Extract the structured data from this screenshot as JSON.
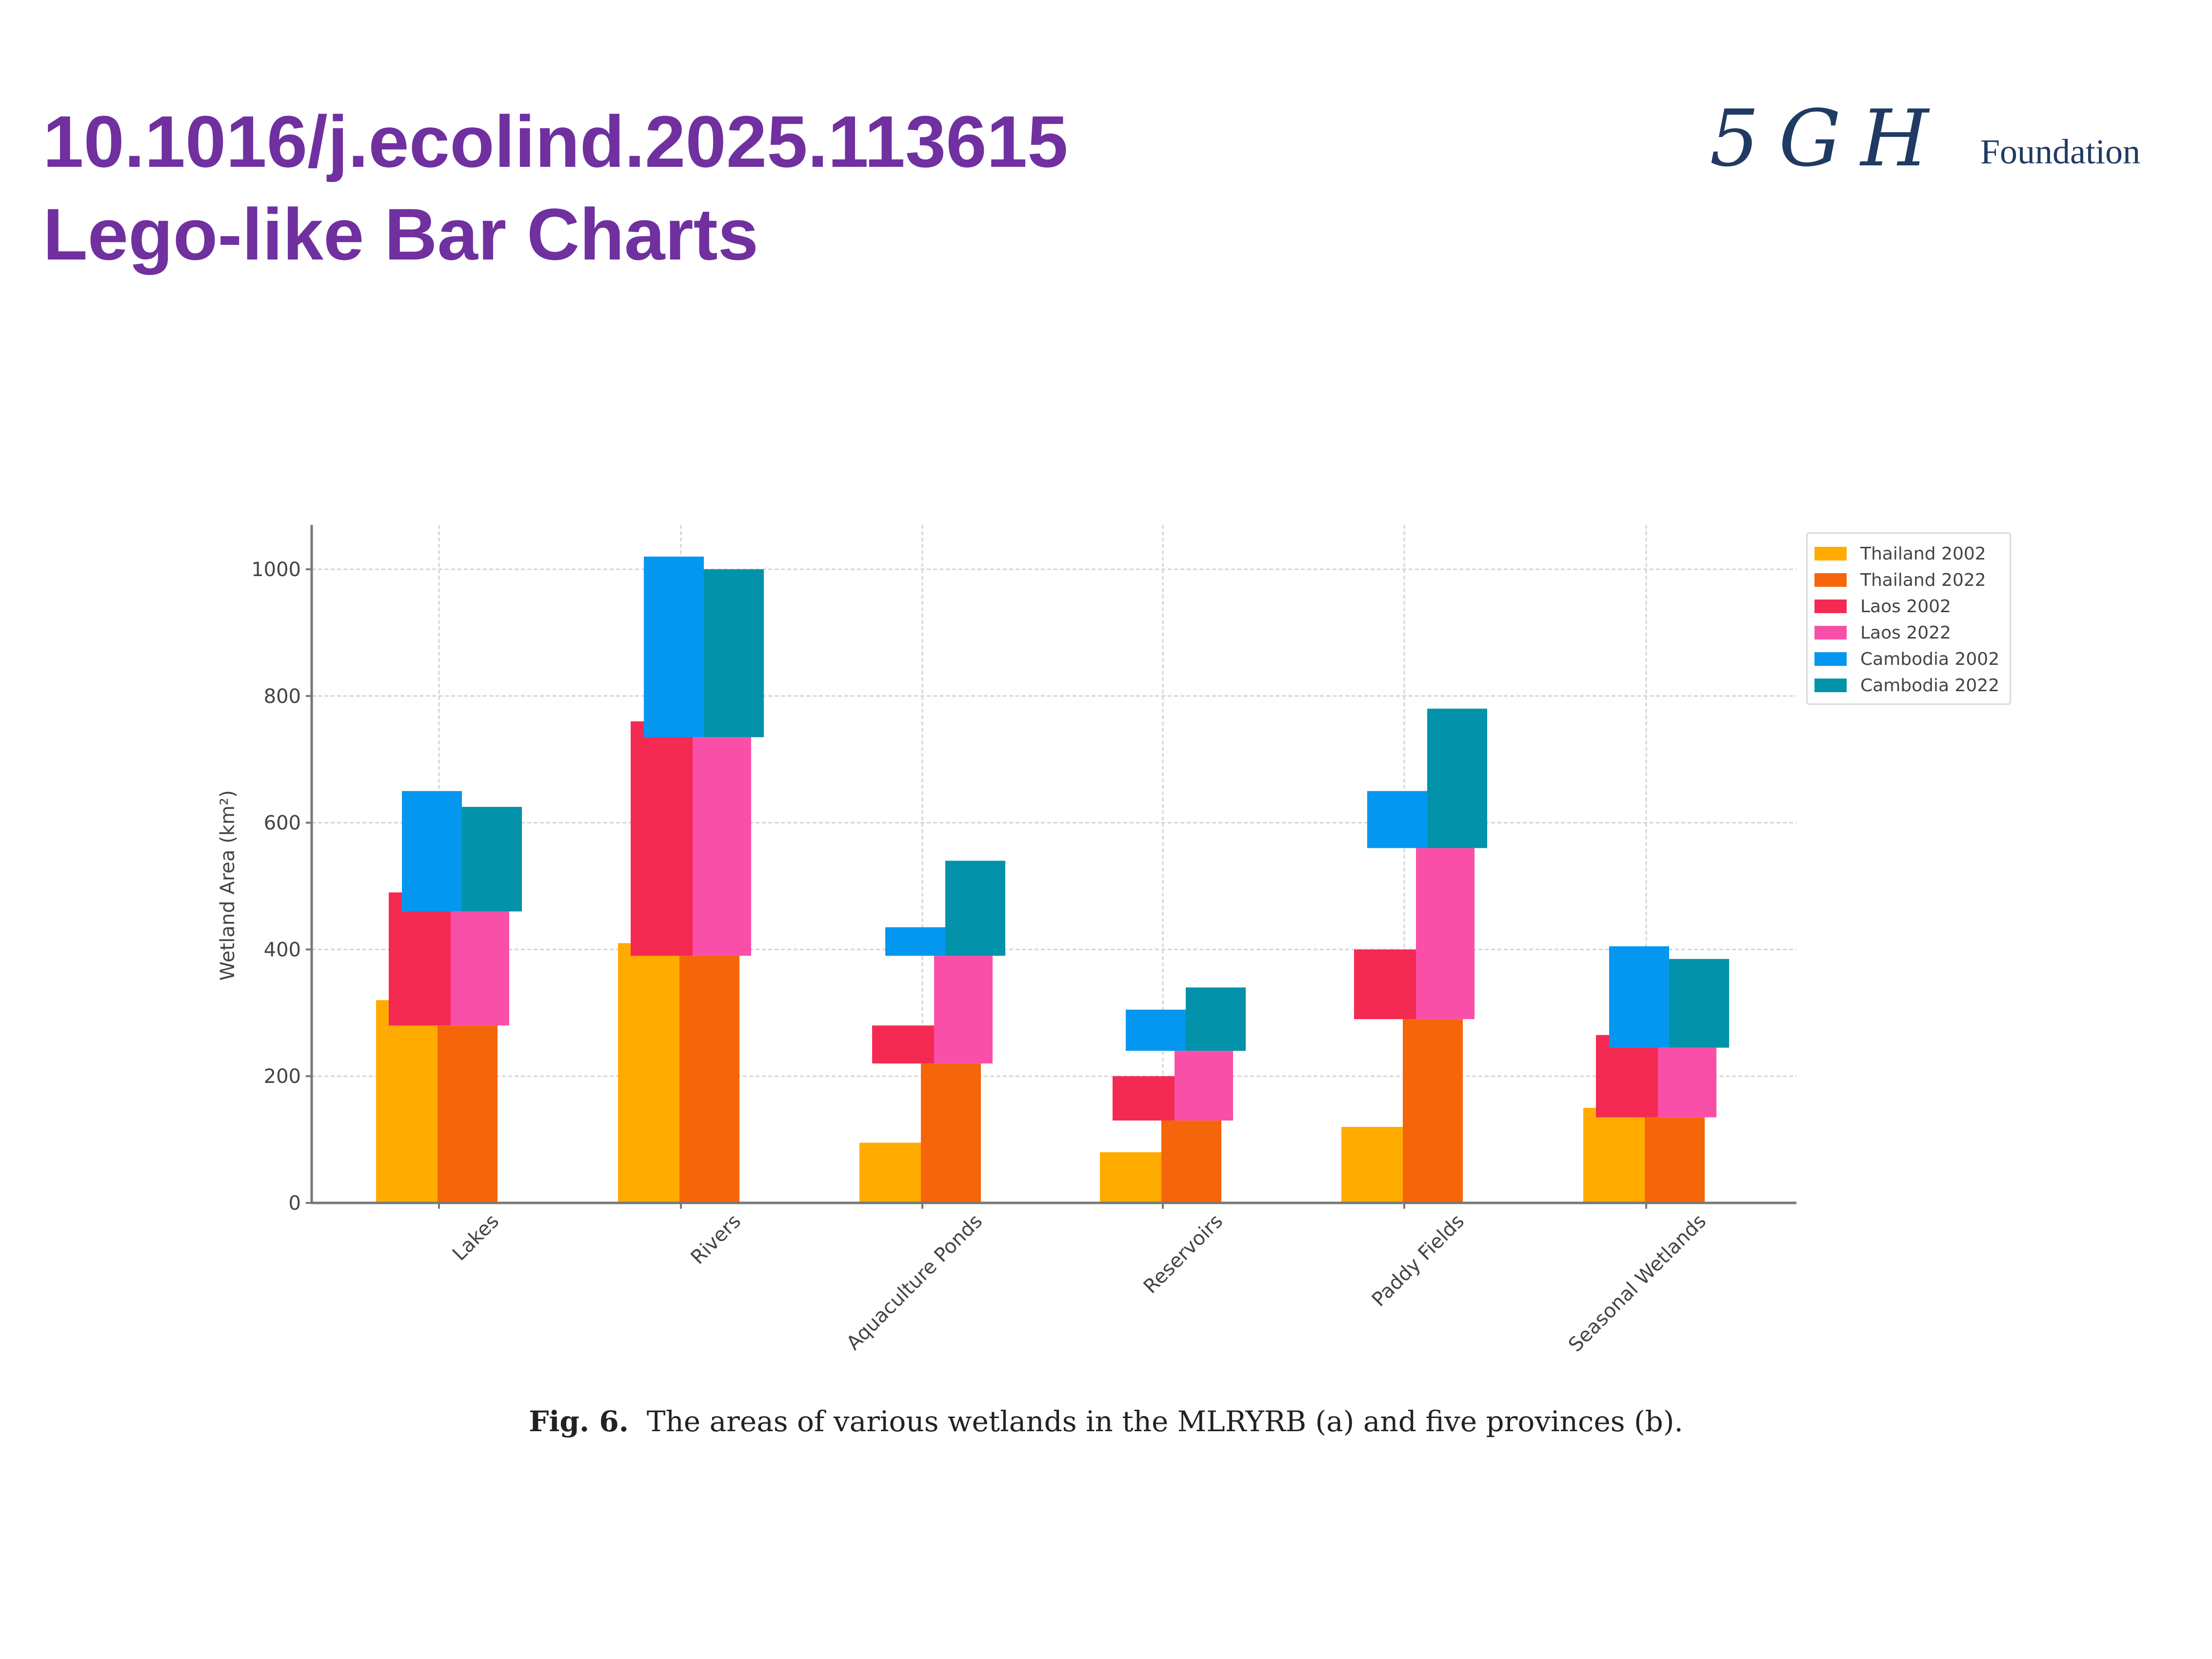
{
  "header": {
    "title_line1": "10.1016/j.ecolind.2025.113615",
    "title_line2": "Lego-like Bar Charts",
    "title_color": "#7030a0"
  },
  "logo": {
    "script_text": "5GH",
    "text": "Foundation",
    "color": "#1f3b63"
  },
  "caption": {
    "label": "Fig. 6.",
    "text": "The areas of various wetlands in the MLRYRB (a) and five provinces (b)."
  },
  "chart_data": {
    "type": "bar",
    "style": "lego-like stacked, offset bars",
    "title": "",
    "xlabel": "",
    "ylabel": "Wetland Area (km²)",
    "ylim": [
      0,
      1070
    ],
    "yticks": [
      0,
      200,
      400,
      600,
      800,
      1000
    ],
    "grid": true,
    "legend_position": "top-right",
    "categories": [
      "Lakes",
      "Rivers",
      "Aquaculture Ponds",
      "Reservoirs",
      "Paddy Fields",
      "Seasonal Wetlands"
    ],
    "series": [
      {
        "name": "Thailand 2002",
        "color": "#ffab00",
        "bottom": [
          0,
          0,
          0,
          0,
          0,
          0
        ],
        "top": [
          320,
          410,
          95,
          80,
          120,
          150
        ]
      },
      {
        "name": "Thailand 2022",
        "color": "#f5650a",
        "bottom": [
          0,
          0,
          0,
          0,
          0,
          0
        ],
        "top": [
          280,
          390,
          220,
          130,
          290,
          135
        ]
      },
      {
        "name": "Laos 2002",
        "color": "#f42a52",
        "bottom": [
          280,
          390,
          220,
          130,
          290,
          135
        ],
        "top": [
          490,
          760,
          280,
          200,
          400,
          265
        ]
      },
      {
        "name": "Laos 2022",
        "color": "#fa4fa9",
        "bottom": [
          280,
          390,
          220,
          130,
          290,
          135
        ],
        "top": [
          460,
          735,
          390,
          240,
          560,
          245
        ]
      },
      {
        "name": "Cambodia 2002",
        "color": "#0497ef",
        "bottom": [
          460,
          735,
          390,
          240,
          560,
          245
        ],
        "top": [
          650,
          1020,
          435,
          305,
          650,
          405
        ]
      },
      {
        "name": "Cambodia 2022",
        "color": "#0292a9",
        "bottom": [
          460,
          735,
          390,
          240,
          560,
          245
        ],
        "top": [
          625,
          1000,
          540,
          340,
          780,
          385
        ]
      }
    ]
  }
}
